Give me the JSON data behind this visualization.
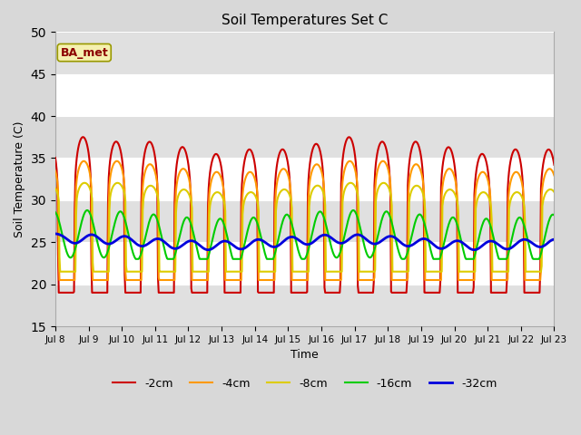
{
  "title": "Soil Temperatures Set C",
  "xlabel": "Time",
  "ylabel": "Soil Temperature (C)",
  "ylim": [
    15,
    50
  ],
  "yticks": [
    15,
    20,
    25,
    30,
    35,
    40,
    45,
    50
  ],
  "annotation_text": "BA_met",
  "fig_bg": "#d8d8d8",
  "plot_bg": "#ffffff",
  "band_color": "#e0e0e0",
  "legend": [
    {
      "label": "-2cm",
      "color": "#cc0000",
      "lw": 1.5
    },
    {
      "label": "-4cm",
      "color": "#ff9900",
      "lw": 1.5
    },
    {
      "label": "-8cm",
      "color": "#ddcc00",
      "lw": 1.5
    },
    {
      "label": "-16cm",
      "color": "#00cc00",
      "lw": 1.5
    },
    {
      "label": "-32cm",
      "color": "#0000dd",
      "lw": 2.0
    }
  ],
  "start_day": 8,
  "end_day": 23,
  "n_days": 15,
  "figsize": [
    6.4,
    4.8
  ],
  "dpi": 100
}
